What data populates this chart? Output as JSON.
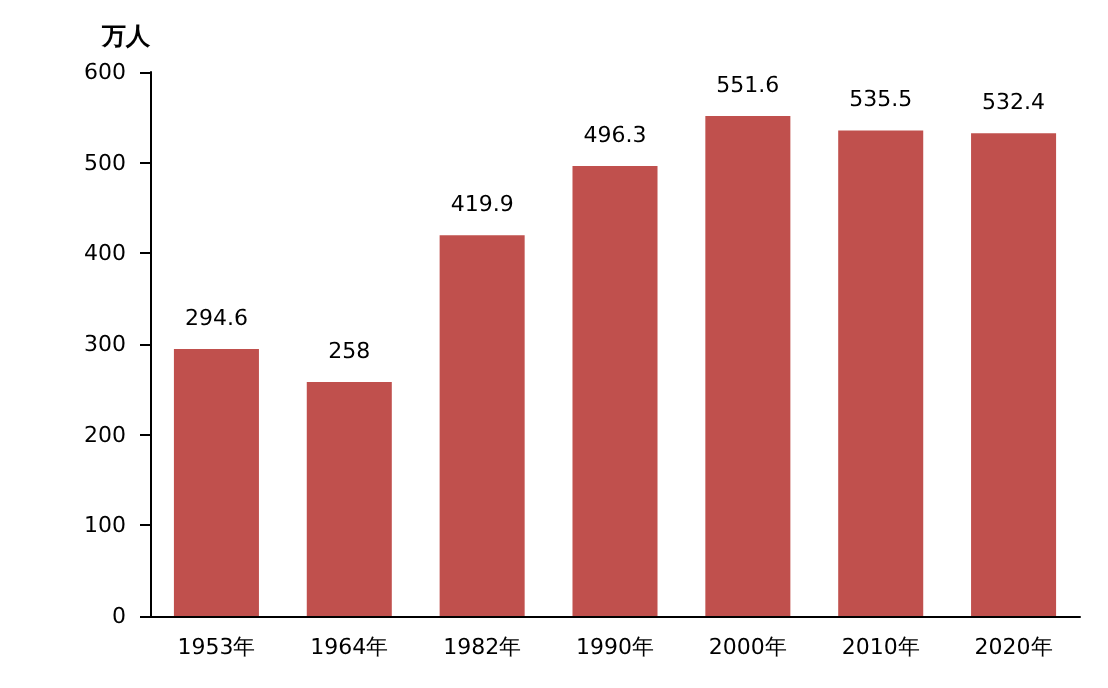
{
  "chart_data": {
    "type": "bar",
    "ylabel": "万人",
    "categories": [
      "1953年",
      "1964年",
      "1982年",
      "1990年",
      "2000年",
      "2010年",
      "2020年"
    ],
    "values": [
      294.6,
      258,
      419.9,
      496.3,
      551.6,
      535.5,
      532.4
    ],
    "color": "#c0504d",
    "ylim": [
      0,
      600
    ],
    "yticks": [
      0,
      100,
      200,
      300,
      400,
      500,
      600
    ],
    "grid": false,
    "data_labels": true
  }
}
